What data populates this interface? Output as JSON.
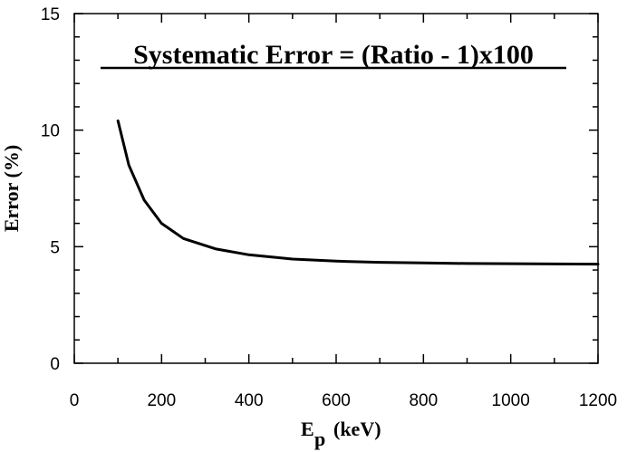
{
  "chart_data": {
    "type": "line",
    "title": "",
    "annotation": "Systematic Error = (Ratio - 1)x100",
    "xlabel_main": "E",
    "xlabel_sub": "p",
    "xlabel_unit": "(keV)",
    "ylabel": "Error (%)",
    "xlim": [
      0,
      1200
    ],
    "ylim": [
      0,
      15
    ],
    "x_ticks": [
      "0",
      "200",
      "400",
      "600",
      "800",
      "1000",
      "1200"
    ],
    "y_ticks": [
      "0",
      "5",
      "10",
      "15"
    ],
    "grid": false,
    "line_color": "#000000",
    "x": [
      100,
      125,
      160,
      200,
      250,
      325,
      400,
      500,
      600,
      700,
      800,
      900,
      1000,
      1100,
      1200
    ],
    "y": [
      10.4,
      8.5,
      7.0,
      6.0,
      5.35,
      4.9,
      4.65,
      4.47,
      4.38,
      4.33,
      4.3,
      4.28,
      4.27,
      4.26,
      4.25
    ]
  }
}
